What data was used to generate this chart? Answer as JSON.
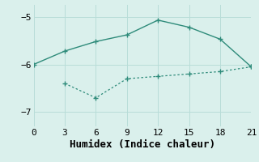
{
  "xlabel": "Humidex (Indice chaleur)",
  "line1_x": [
    0,
    3,
    6,
    9,
    12,
    15,
    18,
    21
  ],
  "line1_y": [
    -6.0,
    -5.72,
    -5.52,
    -5.38,
    -5.07,
    -5.22,
    -5.47,
    -6.05
  ],
  "line2_x": [
    3,
    6,
    9,
    12,
    15,
    18,
    21
  ],
  "line2_y": [
    -6.4,
    -6.7,
    -6.3,
    -6.25,
    -6.2,
    -6.15,
    -6.05
  ],
  "line_color": "#2e8b7a",
  "bg_color": "#daf0ec",
  "grid_color": "#b8ddd8",
  "xlim": [
    0,
    21
  ],
  "ylim": [
    -7.3,
    -4.75
  ],
  "xticks": [
    0,
    3,
    6,
    9,
    12,
    15,
    18,
    21
  ],
  "yticks": [
    -7,
    -6,
    -5
  ],
  "tick_fontsize": 8,
  "label_fontsize": 9
}
